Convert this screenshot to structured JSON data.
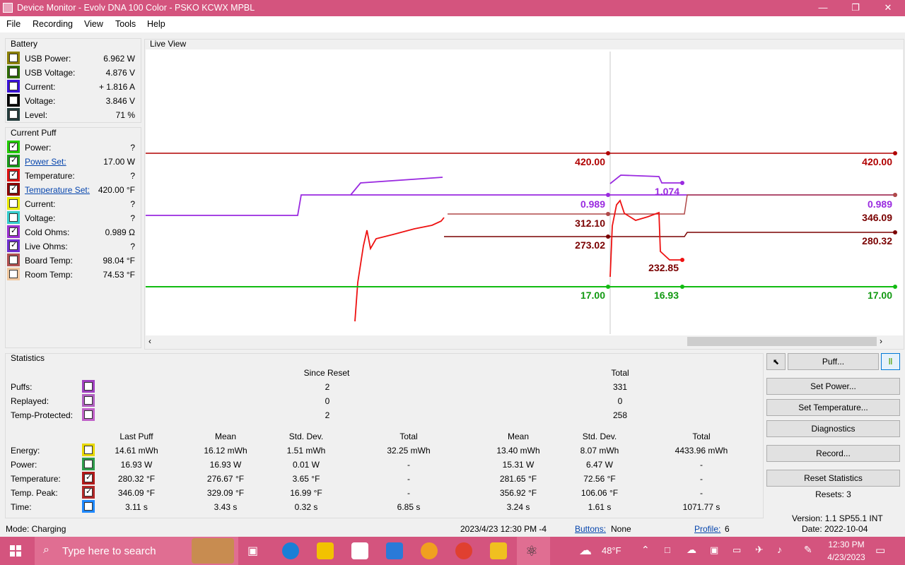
{
  "window": {
    "title": "Device Monitor - Evolv DNA 100 Color - PSKO KCWX MPBL",
    "minimize": "—",
    "maximize": "❐",
    "close": "✕"
  },
  "menu": [
    "File",
    "Recording",
    "View",
    "Tools",
    "Help"
  ],
  "battery": {
    "title": "Battery",
    "rows": [
      {
        "label": "USB Power:",
        "value": "6.962 W",
        "color": "#8b8000",
        "checked": false
      },
      {
        "label": "USB Voltage:",
        "value": "4.876 V",
        "color": "#2e6b00",
        "checked": false
      },
      {
        "label": "Current:",
        "value": "+ 1.816 A",
        "color": "#3a10d8",
        "checked": false
      },
      {
        "label": "Voltage:",
        "value": "3.846 V",
        "color": "#000000",
        "checked": false
      },
      {
        "label": "Level:",
        "value": "71 %",
        "color": "#243c3c",
        "checked": false
      }
    ]
  },
  "current_puff": {
    "title": "Current Puff",
    "rows": [
      {
        "label": "Power:",
        "value": "?",
        "color": "#22cc00",
        "checked": true,
        "link": false
      },
      {
        "label": "Power Set:",
        "value": "17.00 W",
        "color": "#1a9a1a",
        "checked": true,
        "link": true
      },
      {
        "label": "Temperature:",
        "value": "?",
        "color": "#dd1111",
        "checked": true,
        "link": false
      },
      {
        "label": "Temperature Set:",
        "value": "420.00 °F",
        "color": "#8b0000",
        "checked": true,
        "link": true
      },
      {
        "label": "Current:",
        "value": "?",
        "color": "#e8e800",
        "checked": false,
        "link": false
      },
      {
        "label": "Voltage:",
        "value": "?",
        "color": "#33cccc",
        "checked": false,
        "link": false
      },
      {
        "label": "Cold Ohms:",
        "value": "0.989 Ω",
        "color": "#9b30d0",
        "checked": true,
        "link": false
      },
      {
        "label": "Live Ohms:",
        "value": "?",
        "color": "#7030d0",
        "checked": true,
        "link": false
      },
      {
        "label": "Board Temp:",
        "value": "98.04 °F",
        "color": "#b05050",
        "checked": false,
        "link": false
      },
      {
        "label": "Room Temp:",
        "value": "74.53 °F",
        "color": "#f0c8a0",
        "checked": false,
        "link": false
      }
    ]
  },
  "liveview": {
    "title": "Live View",
    "labels": {
      "temp_set_left": "420.00",
      "temp_set_right": "420.00",
      "ohms_left": "0.989",
      "ohms_right": "0.989",
      "ohms_live": "1.074",
      "board_left": "312.10",
      "board_right": "346.09",
      "temp_left": "273.02",
      "temp_right": "280.32",
      "temp_live": "232.85",
      "power_left": "17.00",
      "power_mid": "16.93",
      "power_right": "17.00"
    },
    "colors": {
      "temp_set": "#b00000",
      "ohms": "#9a2ae0",
      "board": "#b04848",
      "temp": "#ee1111",
      "power": "#11bb11",
      "temp_label": "#7a0000"
    }
  },
  "statistics": {
    "title": "Statistics",
    "since_reset": "Since Reset",
    "total": "Total",
    "count_rows": [
      {
        "label": "Puffs:",
        "color": "#a040c0",
        "since": "2",
        "total": "331"
      },
      {
        "label": "Replayed:",
        "color": "#b060c0",
        "since": "0",
        "total": "0"
      },
      {
        "label": "Temp-Protected:",
        "color": "#c060c8",
        "since": "2",
        "total": "258"
      }
    ],
    "columns": [
      "Last Puff",
      "Mean",
      "Std. Dev.",
      "Total",
      "Mean",
      "Std. Dev.",
      "Total"
    ],
    "rows": [
      {
        "label": "Energy:",
        "color": "#e8d800",
        "checked": false,
        "values": [
          "14.61 mWh",
          "16.12 mWh",
          "1.51 mWh",
          "32.25 mWh",
          "13.40 mWh",
          "8.07 mWh",
          "4433.96 mWh"
        ]
      },
      {
        "label": "Power:",
        "color": "#2e9a4a",
        "checked": false,
        "values": [
          "16.93 W",
          "16.93 W",
          "0.01 W",
          "-",
          "15.31 W",
          "6.47 W",
          "-"
        ]
      },
      {
        "label": "Temperature:",
        "color": "#b01818",
        "checked": true,
        "values": [
          "280.32 °F",
          "276.67 °F",
          "3.65 °F",
          "-",
          "281.65 °F",
          "72.56 °F",
          "-"
        ]
      },
      {
        "label": "Temp. Peak:",
        "color": "#b02828",
        "checked": true,
        "values": [
          "346.09 °F",
          "329.09 °F",
          "16.99 °F",
          "-",
          "356.92 °F",
          "106.06 °F",
          "-"
        ]
      },
      {
        "label": "Time:",
        "color": "#1e88ff",
        "checked": false,
        "values": [
          "3.11 s",
          "3.43 s",
          "0.32 s",
          "6.85 s",
          "3.24 s",
          "1.61 s",
          "1071.77 s"
        ]
      }
    ]
  },
  "buttons": {
    "puff": "Puff...",
    "set_power": "Set Power...",
    "set_temperature": "Set Temperature...",
    "diagnostics": "Diagnostics",
    "record": "Record...",
    "reset_statistics": "Reset Statistics",
    "resets": "Resets: 3"
  },
  "status": {
    "mode": "Mode: Charging",
    "datetime": "2023/4/23 12:30 PM -4",
    "buttons_label": "Buttons:",
    "buttons_value": "None",
    "profile_label": "Profile:",
    "profile_value": "6",
    "version": "Version: 1.1 SP55.1 INT",
    "date": "Date: 2022-10-04"
  },
  "taskbar": {
    "search_placeholder": "Type here to search",
    "weather": "48°F",
    "time": "12:30 PM",
    "date": "4/23/2023"
  }
}
